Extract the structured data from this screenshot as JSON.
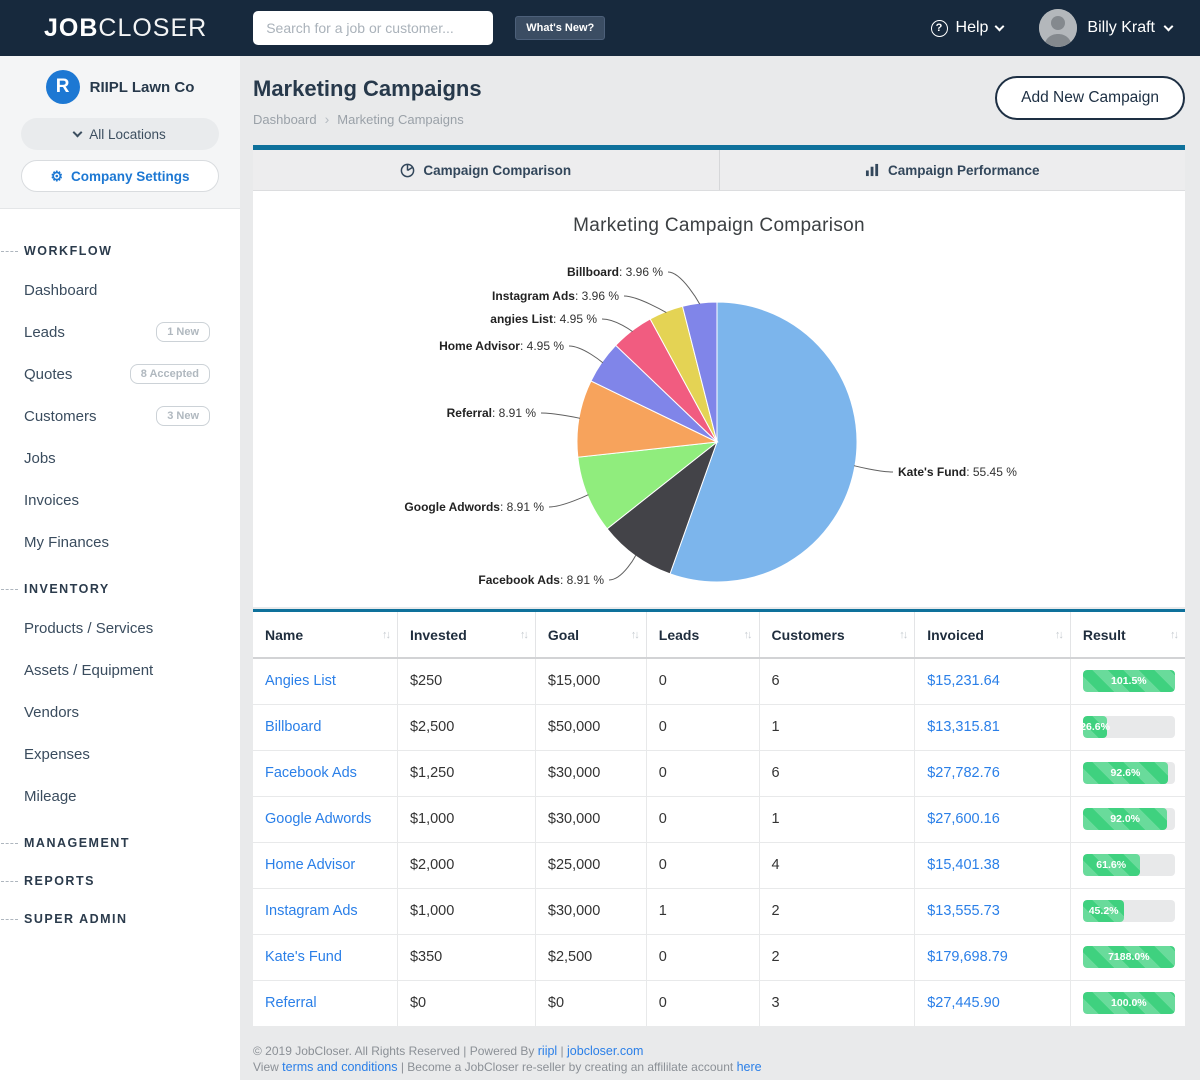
{
  "navbar": {
    "logo_bold": "JOB",
    "logo_light": "CLOSER",
    "search_placeholder": "Search for a job or customer...",
    "whats_new_label": "What's New?",
    "help_label": "Help",
    "user_name": "Billy Kraft"
  },
  "sidebar": {
    "logo_letter": "R",
    "company_name": "RIIPL Lawn Co",
    "locations_label": "All Locations",
    "settings_label": "Company Settings",
    "sections": [
      {
        "label": "WORKFLOW",
        "items": [
          {
            "label": "Dashboard"
          },
          {
            "label": "Leads",
            "badge": "1 New"
          },
          {
            "label": "Quotes",
            "badge": "8 Accepted"
          },
          {
            "label": "Customers",
            "badge": "3 New"
          },
          {
            "label": "Jobs"
          },
          {
            "label": "Invoices"
          },
          {
            "label": "My Finances"
          }
        ]
      },
      {
        "label": "INVENTORY",
        "items": [
          {
            "label": "Products / Services"
          },
          {
            "label": "Assets / Equipment"
          },
          {
            "label": "Vendors"
          },
          {
            "label": "Expenses"
          },
          {
            "label": "Mileage"
          }
        ]
      },
      {
        "label": "MANAGEMENT",
        "items": []
      },
      {
        "label": "REPORTS",
        "items": []
      },
      {
        "label": "SUPER ADMIN",
        "items": []
      }
    ]
  },
  "header": {
    "title": "Marketing Campaigns",
    "breadcrumb": [
      "Dashboard",
      "Marketing Campaigns"
    ],
    "add_button_label": "Add New Campaign"
  },
  "tabs": [
    {
      "label": "Campaign Comparison",
      "icon": "pie-icon"
    },
    {
      "label": "Campaign Performance",
      "icon": "bar-chart-icon"
    }
  ],
  "chart_data": {
    "type": "pie",
    "title": "Marketing Campaign Comparison",
    "unit": "%",
    "legend_position": "none",
    "slices": [
      {
        "name": "Kate's Fund",
        "value": 55.45,
        "label": "55.45 %",
        "color": "#7cb5ec"
      },
      {
        "name": "Facebook Ads",
        "value": 8.91,
        "label": "8.91 %",
        "color": "#434348"
      },
      {
        "name": "Google Adwords",
        "value": 8.91,
        "label": "8.91 %",
        "color": "#90ed7d"
      },
      {
        "name": "Referral",
        "value": 8.91,
        "label": "8.91 %",
        "color": "#f7a35c"
      },
      {
        "name": "Home Advisor",
        "value": 4.95,
        "label": "4.95 %",
        "color": "#8085e9"
      },
      {
        "name": "angies List",
        "value": 4.95,
        "label": "4.95 %",
        "color": "#f15c80"
      },
      {
        "name": "Instagram Ads",
        "value": 3.96,
        "label": "3.96 %",
        "color": "#e4d354"
      },
      {
        "name": "Billboard",
        "value": 3.96,
        "label": "3.96 %",
        "color": "#8085e9"
      }
    ]
  },
  "table": {
    "columns": [
      "Name",
      "Invested",
      "Goal",
      "Leads",
      "Customers",
      "Invoiced",
      "Result"
    ],
    "rows": [
      {
        "name": "Angies List",
        "invested": "$250",
        "goal": "$15,000",
        "leads": "0",
        "customers": "6",
        "invoiced": "$15,231.64",
        "result": "101.5%",
        "result_pct": 100
      },
      {
        "name": "Billboard",
        "invested": "$2,500",
        "goal": "$50,000",
        "leads": "0",
        "customers": "1",
        "invoiced": "$13,315.81",
        "result": "26.6%",
        "result_pct": 26.6
      },
      {
        "name": "Facebook Ads",
        "invested": "$1,250",
        "goal": "$30,000",
        "leads": "0",
        "customers": "6",
        "invoiced": "$27,782.76",
        "result": "92.6%",
        "result_pct": 92.6
      },
      {
        "name": "Google Adwords",
        "invested": "$1,000",
        "goal": "$30,000",
        "leads": "0",
        "customers": "1",
        "invoiced": "$27,600.16",
        "result": "92.0%",
        "result_pct": 92
      },
      {
        "name": "Home Advisor",
        "invested": "$2,000",
        "goal": "$25,000",
        "leads": "0",
        "customers": "4",
        "invoiced": "$15,401.38",
        "result": "61.6%",
        "result_pct": 61.6
      },
      {
        "name": "Instagram Ads",
        "invested": "$1,000",
        "goal": "$30,000",
        "leads": "1",
        "customers": "2",
        "invoiced": "$13,555.73",
        "result": "45.2%",
        "result_pct": 45.2
      },
      {
        "name": "Kate's Fund",
        "invested": "$350",
        "goal": "$2,500",
        "leads": "0",
        "customers": "2",
        "invoiced": "$179,698.79",
        "result": "7188.0%",
        "result_pct": 100
      },
      {
        "name": "Referral",
        "invested": "$0",
        "goal": "$0",
        "leads": "0",
        "customers": "3",
        "invoiced": "$27,445.90",
        "result": "100.0%",
        "result_pct": 100
      }
    ]
  },
  "footer": {
    "line1_pre": "© 2019 JobCloser. All Rights Reserved | Powered By ",
    "line1_link1": "riipl",
    "line1_mid": " | ",
    "line1_link2": "jobcloser.com",
    "line2_pre": "View ",
    "line2_link1": "terms and conditions",
    "line2_mid": " | Become a JobCloser re-seller by creating an affililate account ",
    "line2_link2": "here"
  },
  "colors": {
    "navbar_navy": "#17293d",
    "accent_teal": "#0e719b",
    "link_blue": "#2a7fe8",
    "progress_green": "#3fd17f",
    "brand_blue": "#1d78d3"
  }
}
